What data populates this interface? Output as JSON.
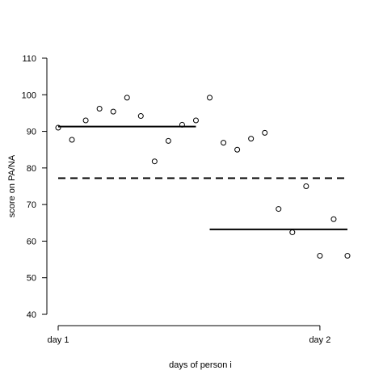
{
  "chart_data": {
    "type": "scatter",
    "title": "",
    "xlabel": "days of person i",
    "ylabel": "score on PA/NA",
    "ylim": [
      40,
      110
    ],
    "yticks": [
      40,
      50,
      60,
      70,
      80,
      90,
      100,
      110
    ],
    "xlim": [
      1,
      22
    ],
    "xticks": [
      {
        "x": 1,
        "label": "day 1"
      },
      {
        "x": 20,
        "label": "day 2"
      }
    ],
    "grid": false,
    "legend": "none",
    "points": [
      {
        "x": 1,
        "y": 91
      },
      {
        "x": 2,
        "y": 87.7
      },
      {
        "x": 3,
        "y": 93
      },
      {
        "x": 4,
        "y": 96.2
      },
      {
        "x": 5,
        "y": 95.4
      },
      {
        "x": 6,
        "y": 99.2
      },
      {
        "x": 7,
        "y": 94.2
      },
      {
        "x": 8,
        "y": 81.8
      },
      {
        "x": 9,
        "y": 87.4
      },
      {
        "x": 10,
        "y": 91.8
      },
      {
        "x": 11,
        "y": 93
      },
      {
        "x": 12,
        "y": 99.2
      },
      {
        "x": 13,
        "y": 86.9
      },
      {
        "x": 14,
        "y": 85
      },
      {
        "x": 15,
        "y": 88
      },
      {
        "x": 16,
        "y": 89.6
      },
      {
        "x": 17,
        "y": 68.8
      },
      {
        "x": 18,
        "y": 62.4
      },
      {
        "x": 19,
        "y": 75
      },
      {
        "x": 20,
        "y": 56
      },
      {
        "x": 21,
        "y": 66
      },
      {
        "x": 22,
        "y": 56
      }
    ],
    "reference_lines": [
      {
        "style": "solid",
        "x_start": 1,
        "x_end": 11,
        "y": 91.3
      },
      {
        "style": "solid",
        "x_start": 12,
        "x_end": 22,
        "y": 63.2
      },
      {
        "style": "dashed",
        "x_start": 1,
        "x_end": 22,
        "y": 77.2
      }
    ],
    "colors": {
      "ink": "#000000",
      "background": "#ffffff"
    }
  }
}
